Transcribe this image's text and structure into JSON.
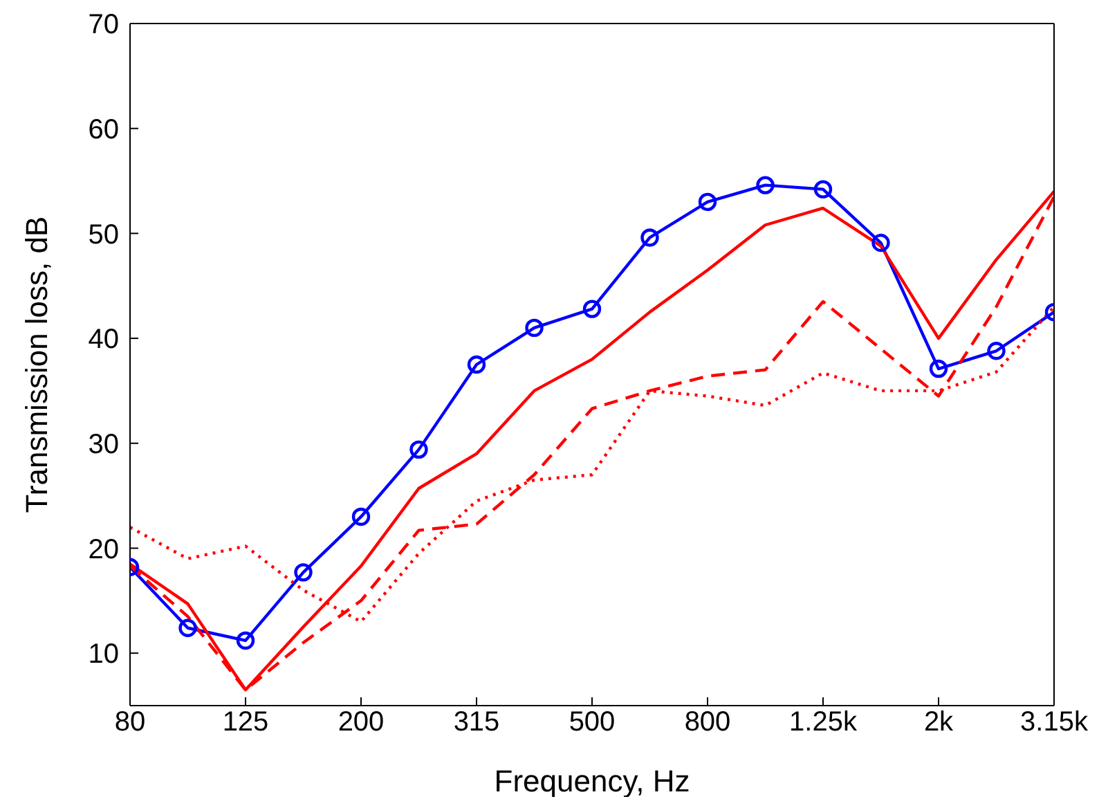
{
  "chart_data": {
    "type": "line",
    "xlabel": "Frequency, Hz",
    "ylabel": "Transmission loss, dB",
    "categories": [
      "80",
      null,
      "125",
      null,
      "200",
      null,
      "315",
      null,
      "500",
      null,
      "800",
      null,
      "1.25k",
      null,
      "2k",
      null,
      "3.15k"
    ],
    "series": [
      {
        "color": "#0000ff",
        "marker": "circle",
        "line_style": "solid",
        "values": [
          18.2,
          12.4,
          11.2,
          17.7,
          23,
          29.4,
          37.5,
          41,
          42.8,
          49.6,
          53,
          54.6,
          54.2,
          49.1,
          37.1,
          38.8,
          42.5
        ]
      },
      {
        "color": "#ff0000",
        "marker": "none",
        "line_style": "solid",
        "values": [
          18.5,
          14.7,
          6.5,
          12.5,
          18.3,
          25.7,
          29,
          35,
          38,
          42.5,
          46.5,
          50.8,
          52.4,
          48.8,
          40,
          47.5,
          54
        ]
      },
      {
        "color": "#ff0000",
        "marker": "none",
        "line_style": "dashed",
        "values": [
          18.3,
          13.5,
          6.5,
          11,
          15,
          21.7,
          22.3,
          27,
          33.3,
          35,
          36.4,
          37,
          43.5,
          39,
          34.5,
          43,
          53.5
        ]
      },
      {
        "color": "#ff0000",
        "marker": "none",
        "line_style": "dotted",
        "values": [
          22,
          19,
          20.2,
          16,
          13,
          19.5,
          24.5,
          26.5,
          27,
          35,
          34.5,
          33.6,
          36.7,
          35,
          35,
          36.8,
          43
        ]
      }
    ],
    "ylim": [
      5,
      70
    ],
    "yticks": [
      10,
      20,
      30,
      40,
      50,
      60,
      70
    ]
  }
}
